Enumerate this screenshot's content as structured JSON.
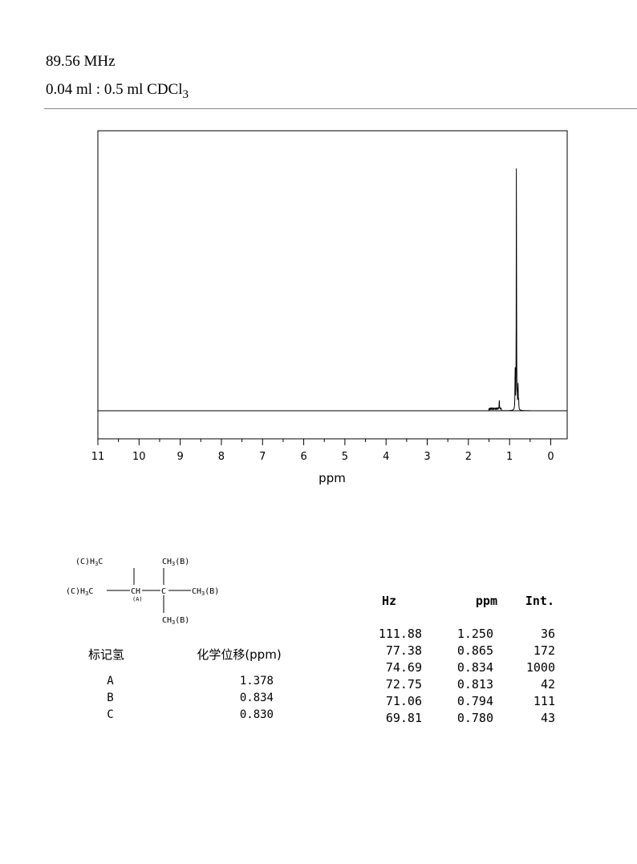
{
  "header": {
    "frequency": "89.56 MHz",
    "solvent_prefix": "0.04 ml : 0.5 ml CDCl",
    "solvent_subscript": "3"
  },
  "chart_data": {
    "type": "line",
    "xlabel": "ppm",
    "xlim": [
      11.0,
      -0.4
    ],
    "x_ticks": [
      11,
      10,
      9,
      8,
      7,
      6,
      5,
      4,
      3,
      2,
      1,
      0
    ],
    "x_tick_labels": [
      "11",
      "10",
      "9",
      "8",
      "7",
      "6",
      "5",
      "4",
      "3",
      "2",
      "1",
      "0"
    ],
    "grid": false,
    "peaks": [
      {
        "ppm": 1.25,
        "intensity": 36
      },
      {
        "ppm": 0.865,
        "intensity": 172
      },
      {
        "ppm": 0.834,
        "intensity": 1000
      },
      {
        "ppm": 0.813,
        "intensity": 42
      },
      {
        "ppm": 0.794,
        "intensity": 111
      },
      {
        "ppm": 0.78,
        "intensity": 43
      }
    ],
    "minor_peaks_region": [
      1.5,
      1.2
    ]
  },
  "structure": {
    "c_h3c_top": "(C)H",
    "c_h3c_top_tail": "C",
    "c_h3c_left": "(C)H",
    "c_h3c_left_tail": "C",
    "ch": "CH",
    "ch_label": "(A)",
    "center_c": "C",
    "ch3_top": "CH",
    "ch3_top_tail": "(B)",
    "ch3_right": "CH",
    "ch3_right_tail": "(B)",
    "ch3_bottom": "CH",
    "ch3_bottom_tail": "(B)",
    "sub3": "3"
  },
  "shift_table": {
    "header_label": "标记氢",
    "header_shift": "化学位移(ppm)",
    "rows": [
      {
        "label": "A",
        "shift": "1.378"
      },
      {
        "label": "B",
        "shift": "0.834"
      },
      {
        "label": "C",
        "shift": "0.830"
      }
    ]
  },
  "peak_table": {
    "headers": {
      "hz": "Hz",
      "ppm": "ppm",
      "int": "Int."
    },
    "rows": [
      {
        "hz": "111.88",
        "ppm": "1.250",
        "int": "36"
      },
      {
        "hz": "77.38",
        "ppm": "0.865",
        "int": "172"
      },
      {
        "hz": "74.69",
        "ppm": "0.834",
        "int": "1000"
      },
      {
        "hz": "72.75",
        "ppm": "0.813",
        "int": "42"
      },
      {
        "hz": "71.06",
        "ppm": "0.794",
        "int": "111"
      },
      {
        "hz": "69.81",
        "ppm": "0.780",
        "int": "43"
      }
    ]
  }
}
